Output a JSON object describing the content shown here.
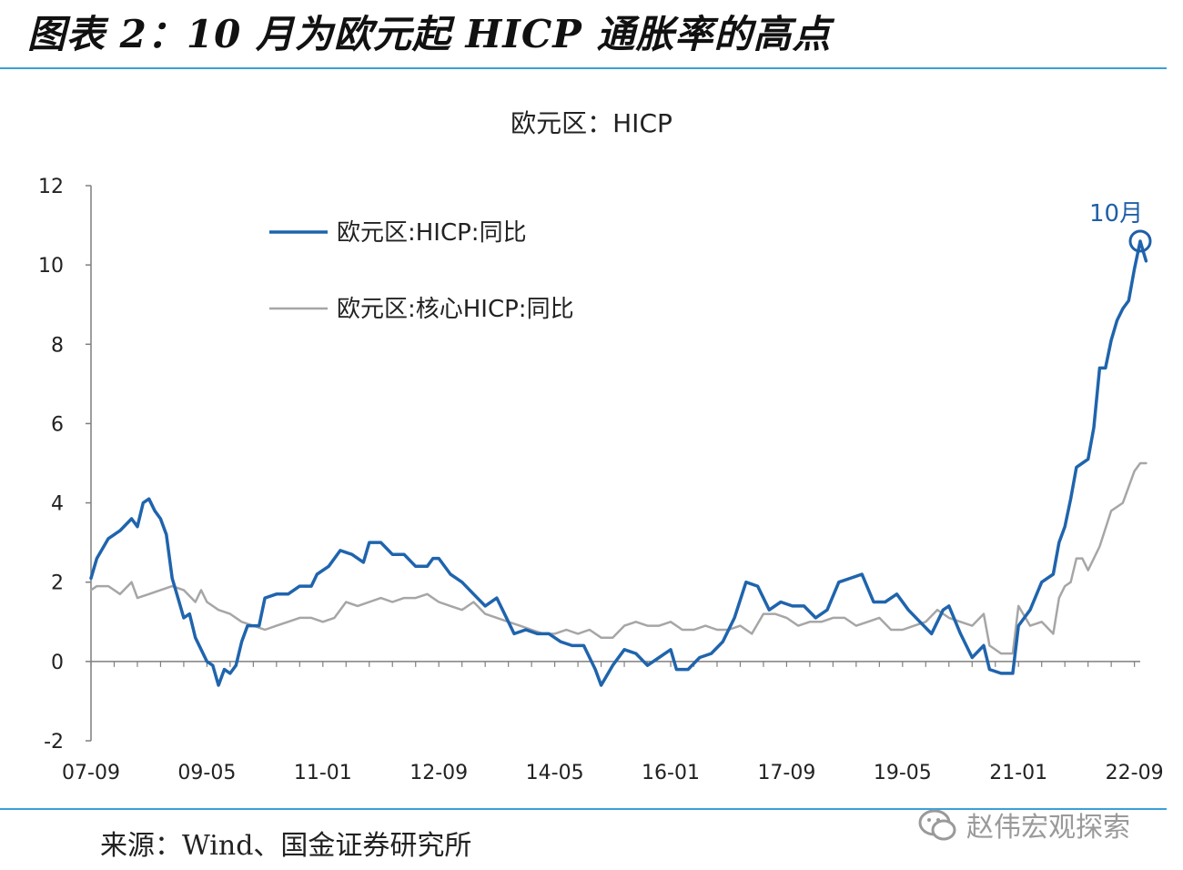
{
  "figure_title": "图表 2：10 月为欧元起 HICP 通胀率的高点",
  "source": "来源：Wind、国金证券研究所",
  "watermark": "赵伟宏观探索",
  "chart_data": {
    "type": "line",
    "title": "欧元区：HICP",
    "xlabel": "",
    "ylabel": "",
    "ylim": [
      -2,
      12
    ],
    "yticks": [
      -2,
      0,
      2,
      4,
      6,
      8,
      10,
      12
    ],
    "x_start": "2007-09",
    "x_end": "2022-10",
    "x_tick_labels": [
      "07-09",
      "09-05",
      "11-01",
      "12-09",
      "14-05",
      "16-01",
      "17-09",
      "19-05",
      "21-01",
      "22-09"
    ],
    "legend_position": "top-left",
    "annotation": {
      "text": "10月",
      "x": "2022-10",
      "y": 10.6,
      "color": "#1f5fa8"
    },
    "colors": {
      "hicp": "#1f64ad",
      "core": "#a6a6a6",
      "annotation": "#1f5fa8"
    },
    "series": [
      {
        "name": "欧元区:HICP:同比",
        "values": [
          [
            "2007-09",
            2.1
          ],
          [
            "2007-10",
            2.6
          ],
          [
            "2007-12",
            3.1
          ],
          [
            "2008-02",
            3.3
          ],
          [
            "2008-04",
            3.6
          ],
          [
            "2008-05",
            3.4
          ],
          [
            "2008-06",
            4.0
          ],
          [
            "2008-07",
            4.1
          ],
          [
            "2008-08",
            3.8
          ],
          [
            "2008-09",
            3.6
          ],
          [
            "2008-10",
            3.2
          ],
          [
            "2008-11",
            2.1
          ],
          [
            "2008-12",
            1.6
          ],
          [
            "2009-01",
            1.1
          ],
          [
            "2009-02",
            1.2
          ],
          [
            "2009-03",
            0.6
          ],
          [
            "2009-05",
            0.0
          ],
          [
            "2009-06",
            -0.1
          ],
          [
            "2009-07",
            -0.6
          ],
          [
            "2009-08",
            -0.2
          ],
          [
            "2009-09",
            -0.3
          ],
          [
            "2009-10",
            -0.1
          ],
          [
            "2009-11",
            0.5
          ],
          [
            "2009-12",
            0.9
          ],
          [
            "2010-02",
            0.9
          ],
          [
            "2010-03",
            1.6
          ],
          [
            "2010-05",
            1.7
          ],
          [
            "2010-07",
            1.7
          ],
          [
            "2010-09",
            1.9
          ],
          [
            "2010-11",
            1.9
          ],
          [
            "2010-12",
            2.2
          ],
          [
            "2011-02",
            2.4
          ],
          [
            "2011-04",
            2.8
          ],
          [
            "2011-06",
            2.7
          ],
          [
            "2011-08",
            2.5
          ],
          [
            "2011-09",
            3.0
          ],
          [
            "2011-11",
            3.0
          ],
          [
            "2012-01",
            2.7
          ],
          [
            "2012-03",
            2.7
          ],
          [
            "2012-05",
            2.4
          ],
          [
            "2012-07",
            2.4
          ],
          [
            "2012-08",
            2.6
          ],
          [
            "2012-09",
            2.6
          ],
          [
            "2012-11",
            2.2
          ],
          [
            "2013-01",
            2.0
          ],
          [
            "2013-03",
            1.7
          ],
          [
            "2013-05",
            1.4
          ],
          [
            "2013-07",
            1.6
          ],
          [
            "2013-08",
            1.3
          ],
          [
            "2013-10",
            0.7
          ],
          [
            "2013-12",
            0.8
          ],
          [
            "2014-02",
            0.7
          ],
          [
            "2014-04",
            0.7
          ],
          [
            "2014-06",
            0.5
          ],
          [
            "2014-08",
            0.4
          ],
          [
            "2014-10",
            0.4
          ],
          [
            "2014-12",
            -0.2
          ],
          [
            "2015-01",
            -0.6
          ],
          [
            "2015-03",
            -0.1
          ],
          [
            "2015-05",
            0.3
          ],
          [
            "2015-07",
            0.2
          ],
          [
            "2015-09",
            -0.1
          ],
          [
            "2015-11",
            0.1
          ],
          [
            "2016-01",
            0.3
          ],
          [
            "2016-02",
            -0.2
          ],
          [
            "2016-04",
            -0.2
          ],
          [
            "2016-06",
            0.1
          ],
          [
            "2016-08",
            0.2
          ],
          [
            "2016-10",
            0.5
          ],
          [
            "2016-12",
            1.1
          ],
          [
            "2017-02",
            2.0
          ],
          [
            "2017-04",
            1.9
          ],
          [
            "2017-06",
            1.3
          ],
          [
            "2017-08",
            1.5
          ],
          [
            "2017-10",
            1.4
          ],
          [
            "2017-12",
            1.4
          ],
          [
            "2018-02",
            1.1
          ],
          [
            "2018-04",
            1.3
          ],
          [
            "2018-06",
            2.0
          ],
          [
            "2018-08",
            2.1
          ],
          [
            "2018-10",
            2.2
          ],
          [
            "2018-12",
            1.5
          ],
          [
            "2019-02",
            1.5
          ],
          [
            "2019-04",
            1.7
          ],
          [
            "2019-06",
            1.3
          ],
          [
            "2019-08",
            1.0
          ],
          [
            "2019-10",
            0.7
          ],
          [
            "2019-12",
            1.3
          ],
          [
            "2020-01",
            1.4
          ],
          [
            "2020-03",
            0.7
          ],
          [
            "2020-05",
            0.1
          ],
          [
            "2020-07",
            0.4
          ],
          [
            "2020-08",
            -0.2
          ],
          [
            "2020-10",
            -0.3
          ],
          [
            "2020-12",
            -0.3
          ],
          [
            "2021-01",
            0.9
          ],
          [
            "2021-03",
            1.3
          ],
          [
            "2021-05",
            2.0
          ],
          [
            "2021-07",
            2.2
          ],
          [
            "2021-08",
            3.0
          ],
          [
            "2021-09",
            3.4
          ],
          [
            "2021-10",
            4.1
          ],
          [
            "2021-11",
            4.9
          ],
          [
            "2021-12",
            5.0
          ],
          [
            "2022-01",
            5.1
          ],
          [
            "2022-02",
            5.9
          ],
          [
            "2022-03",
            7.4
          ],
          [
            "2022-04",
            7.4
          ],
          [
            "2022-05",
            8.1
          ],
          [
            "2022-06",
            8.6
          ],
          [
            "2022-07",
            8.9
          ],
          [
            "2022-08",
            9.1
          ],
          [
            "2022-09",
            9.9
          ],
          [
            "2022-10",
            10.6
          ],
          [
            "2022-11",
            10.1
          ]
        ]
      },
      {
        "name": "欧元区:核心HICP:同比",
        "values": [
          [
            "2007-09",
            1.8
          ],
          [
            "2007-10",
            1.9
          ],
          [
            "2007-12",
            1.9
          ],
          [
            "2008-02",
            1.7
          ],
          [
            "2008-04",
            2.0
          ],
          [
            "2008-05",
            1.6
          ],
          [
            "2008-07",
            1.7
          ],
          [
            "2008-09",
            1.8
          ],
          [
            "2008-11",
            1.9
          ],
          [
            "2009-01",
            1.8
          ],
          [
            "2009-03",
            1.5
          ],
          [
            "2009-04",
            1.8
          ],
          [
            "2009-05",
            1.5
          ],
          [
            "2009-07",
            1.3
          ],
          [
            "2009-09",
            1.2
          ],
          [
            "2009-11",
            1.0
          ],
          [
            "2010-01",
            0.9
          ],
          [
            "2010-03",
            0.8
          ],
          [
            "2010-05",
            0.9
          ],
          [
            "2010-07",
            1.0
          ],
          [
            "2010-09",
            1.1
          ],
          [
            "2010-11",
            1.1
          ],
          [
            "2011-01",
            1.0
          ],
          [
            "2011-03",
            1.1
          ],
          [
            "2011-05",
            1.5
          ],
          [
            "2011-07",
            1.4
          ],
          [
            "2011-09",
            1.5
          ],
          [
            "2011-11",
            1.6
          ],
          [
            "2012-01",
            1.5
          ],
          [
            "2012-03",
            1.6
          ],
          [
            "2012-05",
            1.6
          ],
          [
            "2012-07",
            1.7
          ],
          [
            "2012-09",
            1.5
          ],
          [
            "2012-11",
            1.4
          ],
          [
            "2013-01",
            1.3
          ],
          [
            "2013-03",
            1.5
          ],
          [
            "2013-05",
            1.2
          ],
          [
            "2013-07",
            1.1
          ],
          [
            "2013-09",
            1.0
          ],
          [
            "2013-11",
            0.9
          ],
          [
            "2014-01",
            0.8
          ],
          [
            "2014-03",
            0.7
          ],
          [
            "2014-05",
            0.7
          ],
          [
            "2014-07",
            0.8
          ],
          [
            "2014-09",
            0.7
          ],
          [
            "2014-11",
            0.8
          ],
          [
            "2015-01",
            0.6
          ],
          [
            "2015-03",
            0.6
          ],
          [
            "2015-05",
            0.9
          ],
          [
            "2015-07",
            1.0
          ],
          [
            "2015-09",
            0.9
          ],
          [
            "2015-11",
            0.9
          ],
          [
            "2016-01",
            1.0
          ],
          [
            "2016-03",
            0.8
          ],
          [
            "2016-05",
            0.8
          ],
          [
            "2016-07",
            0.9
          ],
          [
            "2016-09",
            0.8
          ],
          [
            "2016-11",
            0.8
          ],
          [
            "2017-01",
            0.9
          ],
          [
            "2017-03",
            0.7
          ],
          [
            "2017-05",
            1.2
          ],
          [
            "2017-07",
            1.2
          ],
          [
            "2017-09",
            1.1
          ],
          [
            "2017-11",
            0.9
          ],
          [
            "2018-01",
            1.0
          ],
          [
            "2018-03",
            1.0
          ],
          [
            "2018-05",
            1.1
          ],
          [
            "2018-07",
            1.1
          ],
          [
            "2018-09",
            0.9
          ],
          [
            "2018-11",
            1.0
          ],
          [
            "2019-01",
            1.1
          ],
          [
            "2019-03",
            0.8
          ],
          [
            "2019-05",
            0.8
          ],
          [
            "2019-07",
            0.9
          ],
          [
            "2019-09",
            1.0
          ],
          [
            "2019-11",
            1.3
          ],
          [
            "2020-01",
            1.1
          ],
          [
            "2020-03",
            1.0
          ],
          [
            "2020-05",
            0.9
          ],
          [
            "2020-07",
            1.2
          ],
          [
            "2020-08",
            0.4
          ],
          [
            "2020-10",
            0.2
          ],
          [
            "2020-12",
            0.2
          ],
          [
            "2021-01",
            1.4
          ],
          [
            "2021-03",
            0.9
          ],
          [
            "2021-05",
            1.0
          ],
          [
            "2021-07",
            0.7
          ],
          [
            "2021-08",
            1.6
          ],
          [
            "2021-09",
            1.9
          ],
          [
            "2021-10",
            2.0
          ],
          [
            "2021-11",
            2.6
          ],
          [
            "2021-12",
            2.6
          ],
          [
            "2022-01",
            2.3
          ],
          [
            "2022-03",
            2.9
          ],
          [
            "2022-05",
            3.8
          ],
          [
            "2022-07",
            4.0
          ],
          [
            "2022-09",
            4.8
          ],
          [
            "2022-10",
            5.0
          ],
          [
            "2022-11",
            5.0
          ]
        ]
      }
    ]
  }
}
